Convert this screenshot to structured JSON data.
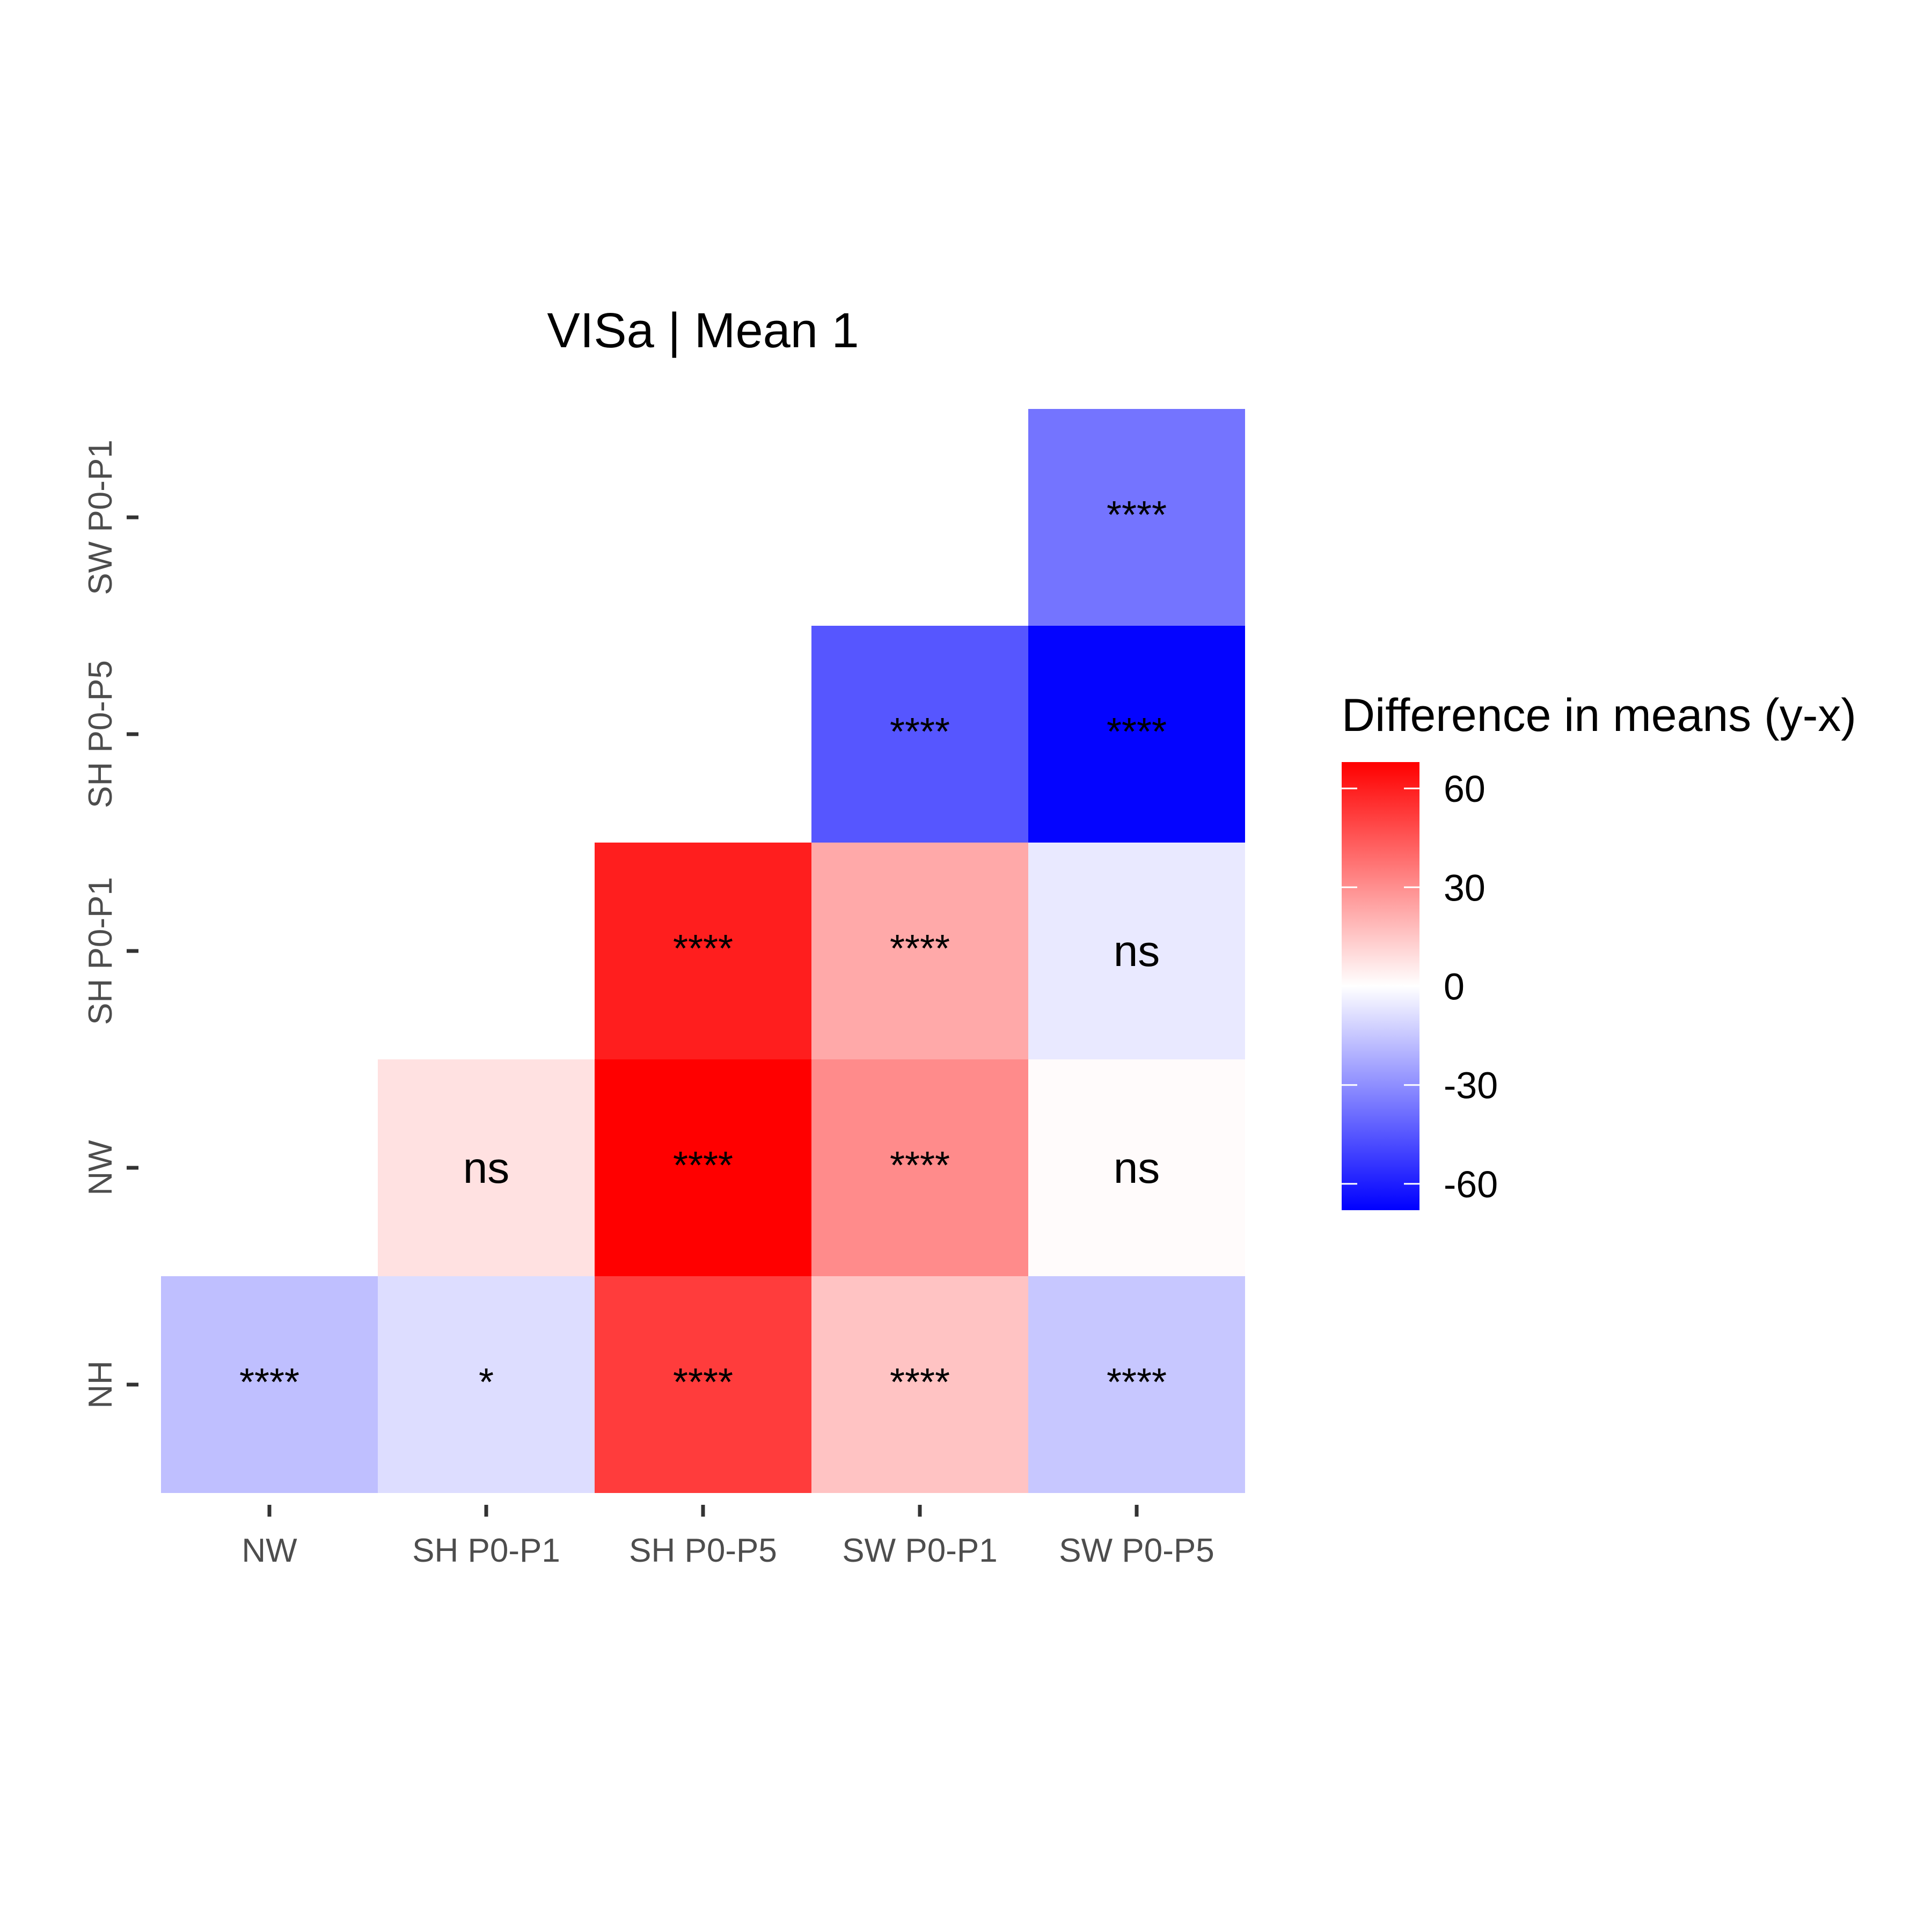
{
  "chart_data": {
    "type": "heatmap",
    "title": "VISa | Mean 1",
    "x_categories": [
      "NW",
      "SH P0-P1",
      "SH P0-P5",
      "SW P0-P1",
      "SW P0-P5"
    ],
    "y_categories": [
      "NH",
      "NW",
      "SH P0-P1",
      "SH P0-P5",
      "SW P0-P1"
    ],
    "cells": [
      {
        "x": "NW",
        "y": "NH",
        "value": -17,
        "label": "****"
      },
      {
        "x": "SH P0-P1",
        "y": "NH",
        "value": -9,
        "label": "*"
      },
      {
        "x": "SH P0-P5",
        "y": "NH",
        "value": 52,
        "label": "****"
      },
      {
        "x": "SW P0-P1",
        "y": "NH",
        "value": 16,
        "label": "****"
      },
      {
        "x": "SW P0-P5",
        "y": "NH",
        "value": -15,
        "label": "****"
      },
      {
        "x": "SH P0-P1",
        "y": "NW",
        "value": 8,
        "label": "ns"
      },
      {
        "x": "SH P0-P5",
        "y": "NW",
        "value": 68,
        "label": "****"
      },
      {
        "x": "SW P0-P1",
        "y": "NW",
        "value": 31,
        "label": "****"
      },
      {
        "x": "SW P0-P5",
        "y": "NW",
        "value": 1,
        "label": "ns"
      },
      {
        "x": "SH P0-P5",
        "y": "SH P0-P1",
        "value": 60,
        "label": "****"
      },
      {
        "x": "SW P0-P1",
        "y": "SH P0-P1",
        "value": 23,
        "label": "****"
      },
      {
        "x": "SW P0-P5",
        "y": "SH P0-P1",
        "value": -6,
        "label": "ns"
      },
      {
        "x": "SW P0-P1",
        "y": "SH P0-P5",
        "value": -45,
        "label": "****"
      },
      {
        "x": "SW P0-P5",
        "y": "SH P0-P5",
        "value": -67,
        "label": "****"
      },
      {
        "x": "SW P0-P5",
        "y": "SW P0-P1",
        "value": -37,
        "label": "****"
      }
    ],
    "legend": {
      "title": "Difference in means (y-x)",
      "ticks": [
        60,
        30,
        0,
        -30,
        -60
      ],
      "range": [
        -68,
        68
      ],
      "colors": {
        "low": "#0000ff",
        "mid": "#ffffff",
        "high": "#ff0000"
      }
    }
  }
}
